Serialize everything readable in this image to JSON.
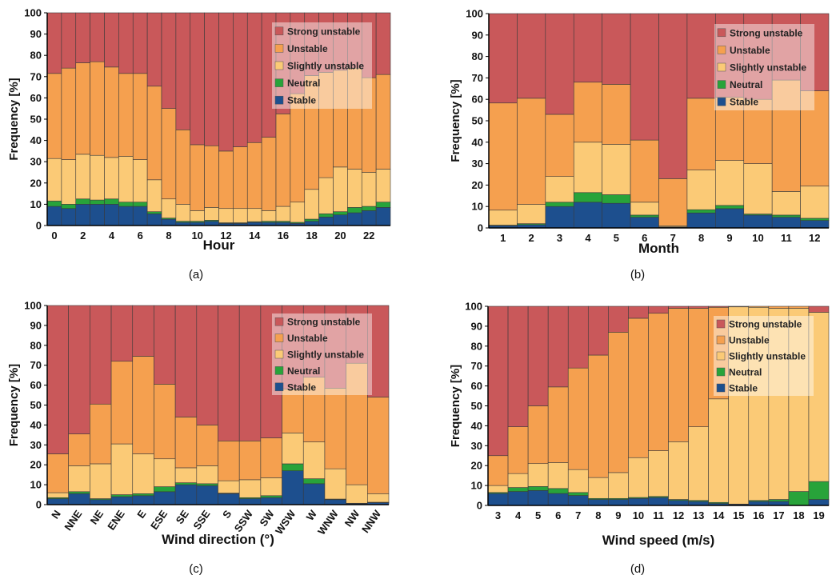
{
  "colors": {
    "Strong unstable": "#c9585a",
    "Unstable": "#f5a04f",
    "Slightly unstable": "#fbca76",
    "Neutral": "#28a33a",
    "Stable": "#1d4f8e"
  },
  "chart_data": [
    {
      "type": "bar",
      "stacked": true,
      "panel": "(a)",
      "xlabel": "Hour",
      "ylabel": "Frequency [%]",
      "ylim": [
        0,
        100
      ],
      "yticks": [
        "0",
        "10",
        "20",
        "30",
        "40",
        "50",
        "60",
        "70",
        "80",
        "90",
        "100"
      ],
      "categories": [
        "0",
        "1",
        "2",
        "3",
        "4",
        "5",
        "6",
        "7",
        "8",
        "9",
        "10",
        "11",
        "12",
        "13",
        "14",
        "15",
        "16",
        "17",
        "18",
        "19",
        "20",
        "21",
        "22",
        "23"
      ],
      "xtick_labels": [
        "0",
        "",
        "2",
        "",
        "4",
        "",
        "6",
        "",
        "8",
        "",
        "10",
        "",
        "12",
        "",
        "14",
        "",
        "16",
        "",
        "18",
        "",
        "20",
        "",
        "22",
        ""
      ],
      "legend": [
        "Strong unstable",
        "Unstable",
        "Slightly unstable",
        "Neutral",
        "Stable"
      ],
      "series": [
        {
          "name": "Stable",
          "values": [
            9,
            8,
            10,
            10,
            10,
            9,
            9,
            5.5,
            3,
            1.5,
            1.5,
            2,
            1,
            1,
            1.5,
            1.5,
            1.5,
            1,
            2,
            4,
            5,
            6,
            7,
            8.5
          ]
        },
        {
          "name": "Neutral",
          "values": [
            2.5,
            2,
            2.5,
            2,
            2.5,
            2,
            2,
            1,
            0.5,
            0.5,
            0.5,
            0.5,
            0.3,
            0.3,
            0.3,
            0.5,
            0.5,
            0.5,
            1,
            1.5,
            1.5,
            2.5,
            2,
            2.5
          ]
        },
        {
          "name": "Slightly unstable",
          "values": [
            20,
            21,
            21,
            21,
            19.5,
            21.5,
            20,
            15,
            9,
            8,
            5,
            6,
            6.7,
            6.7,
            6.2,
            5,
            7,
            9.5,
            14,
            17,
            21,
            18,
            16,
            15.5
          ]
        },
        {
          "name": "Unstable",
          "values": [
            40,
            43,
            43,
            44,
            42.5,
            39,
            40.5,
            44,
            42.5,
            35,
            31,
            29,
            27,
            29,
            31,
            34.5,
            43.5,
            51,
            53.5,
            49.5,
            45.5,
            47.5,
            44.5,
            44.5
          ]
        },
        {
          "name": "Strong unstable",
          "values": [
            28.5,
            26,
            23.5,
            23,
            25.5,
            28.5,
            28.5,
            34.5,
            45,
            55,
            62,
            62.5,
            65,
            63,
            61,
            58.5,
            47.5,
            38,
            29.5,
            28,
            27,
            26,
            30.5,
            29
          ]
        }
      ]
    },
    {
      "type": "bar",
      "stacked": true,
      "panel": "(b)",
      "xlabel": "Month",
      "ylabel": "Frequency [%]",
      "ylim": [
        0,
        100
      ],
      "yticks": [
        "0",
        "10",
        "20",
        "30",
        "40",
        "50",
        "60",
        "70",
        "80",
        "90",
        "100"
      ],
      "categories": [
        "1",
        "2",
        "3",
        "4",
        "5",
        "6",
        "7",
        "8",
        "9",
        "10",
        "11",
        "12"
      ],
      "xtick_labels": [
        "1",
        "2",
        "3",
        "4",
        "5",
        "6",
        "7",
        "8",
        "9",
        "10",
        "11",
        "12"
      ],
      "legend": [
        "Strong unstable",
        "Unstable",
        "Slightly unstable",
        "Neutral",
        "Stable"
      ],
      "series": [
        {
          "name": "Stable",
          "values": [
            1,
            1.5,
            10,
            12,
            11.5,
            5,
            0.3,
            7,
            9,
            6,
            5,
            3.5
          ]
        },
        {
          "name": "Neutral",
          "values": [
            0.3,
            0.5,
            2,
            4.5,
            4,
            1,
            0.2,
            1.5,
            1.5,
            0.5,
            1,
            1
          ]
        },
        {
          "name": "Slightly unstable",
          "values": [
            7,
            9,
            12,
            23.5,
            23.5,
            6,
            0.5,
            18.5,
            21,
            23.5,
            11,
            15
          ]
        },
        {
          "name": "Unstable",
          "values": [
            50,
            49.5,
            29,
            28,
            28,
            29,
            22,
            33.5,
            29.5,
            30,
            52,
            44.5
          ]
        },
        {
          "name": "Strong unstable",
          "values": [
            41.7,
            39.5,
            47,
            32,
            33,
            59,
            77,
            39.5,
            39,
            40,
            31,
            36
          ]
        }
      ]
    },
    {
      "type": "bar",
      "stacked": true,
      "panel": "(c)",
      "xlabel": "Wind direction (°)",
      "ylabel": "Frequency [%]",
      "ylim": [
        0,
        100
      ],
      "yticks": [
        "0",
        "10",
        "20",
        "30",
        "40",
        "50",
        "60",
        "70",
        "80",
        "90",
        "100"
      ],
      "categories": [
        "N",
        "NNE",
        "NE",
        "ENE",
        "E",
        "ESE",
        "SE",
        "SSE",
        "S",
        "SSW",
        "SW",
        "WSW",
        "W",
        "WNW",
        "NW",
        "NNW"
      ],
      "xtick_labels": [
        "N",
        "NNE",
        "NE",
        "ENE",
        "E",
        "ESE",
        "SE",
        "SSE",
        "S",
        "SSW",
        "SW",
        "WSW",
        "W",
        "WNW",
        "NW",
        "NNW"
      ],
      "legend": [
        "Strong unstable",
        "Unstable",
        "Slightly unstable",
        "Neutral",
        "Stable"
      ],
      "series": [
        {
          "name": "Stable",
          "values": [
            3,
            5.5,
            2.5,
            4,
            4.5,
            6.5,
            10,
            9.5,
            5.5,
            3,
            3.5,
            17,
            10.5,
            2.5,
            0.5,
            1
          ]
        },
        {
          "name": "Neutral",
          "values": [
            0.5,
            1,
            0.5,
            1,
            1,
            2.5,
            1,
            1,
            0.3,
            0.5,
            1,
            3.5,
            2.5,
            0.3,
            0.2,
            0.2
          ]
        },
        {
          "name": "Slightly unstable",
          "values": [
            2.5,
            13,
            17.5,
            25.5,
            20,
            14,
            7.5,
            9,
            6.2,
            9,
            9,
            15.5,
            18.5,
            15.2,
            9.3,
            4.3
          ]
        },
        {
          "name": "Unstable",
          "values": [
            19.5,
            16,
            30,
            41.5,
            49,
            37.5,
            25.5,
            20.5,
            20,
            19.5,
            20,
            22,
            32.5,
            40.5,
            61,
            48.5
          ]
        },
        {
          "name": "Strong unstable",
          "values": [
            74.5,
            64.5,
            49.5,
            28,
            25.5,
            39.5,
            56,
            60,
            68,
            68,
            66.5,
            42,
            36,
            41.5,
            29,
            46
          ]
        }
      ]
    },
    {
      "type": "bar",
      "stacked": true,
      "panel": "(d)",
      "xlabel": "Wind speed (m/s)",
      "ylabel": "Frequency [%]",
      "ylim": [
        0,
        100
      ],
      "yticks": [
        "0",
        "10",
        "20",
        "30",
        "40",
        "50",
        "60",
        "70",
        "80",
        "90",
        "100"
      ],
      "categories": [
        "3",
        "4",
        "5",
        "6",
        "7",
        "8",
        "9",
        "10",
        "11",
        "12",
        "13",
        "14",
        "15",
        "16",
        "17",
        "18",
        "19"
      ],
      "xtick_labels": [
        "3",
        "4",
        "5",
        "6",
        "7",
        "8",
        "9",
        "10",
        "11",
        "12",
        "13",
        "14",
        "15",
        "16",
        "17",
        "18",
        "19"
      ],
      "legend": [
        "Strong unstable",
        "Unstable",
        "Slightly unstable",
        "Neutral",
        "Stable"
      ],
      "series": [
        {
          "name": "Stable",
          "values": [
            6,
            7,
            7.5,
            6,
            5,
            3,
            3,
            3.5,
            4,
            2.5,
            2,
            1,
            0.5,
            2,
            2,
            0,
            3
          ]
        },
        {
          "name": "Neutral",
          "values": [
            0.5,
            2,
            2,
            2.5,
            1.5,
            0.5,
            0.5,
            0.5,
            0.5,
            0.5,
            0.5,
            0.5,
            0.2,
            0.5,
            1,
            7,
            9
          ]
        },
        {
          "name": "Slightly unstable",
          "values": [
            3.5,
            7,
            11.5,
            13,
            11.5,
            10.5,
            13,
            20,
            23,
            29,
            37,
            52,
            99,
            97,
            96,
            92,
            85
          ]
        },
        {
          "name": "Unstable",
          "values": [
            15,
            23.5,
            29,
            38,
            51,
            61.5,
            70.5,
            70,
            69,
            67,
            59.5,
            46,
            0.3,
            0.5,
            1,
            1,
            0
          ]
        },
        {
          "name": "Strong unstable",
          "values": [
            75,
            60.5,
            50,
            40.5,
            31,
            24.5,
            13,
            6,
            3.5,
            1,
            1,
            0.5,
            0,
            0,
            0,
            0,
            3
          ]
        }
      ]
    }
  ]
}
